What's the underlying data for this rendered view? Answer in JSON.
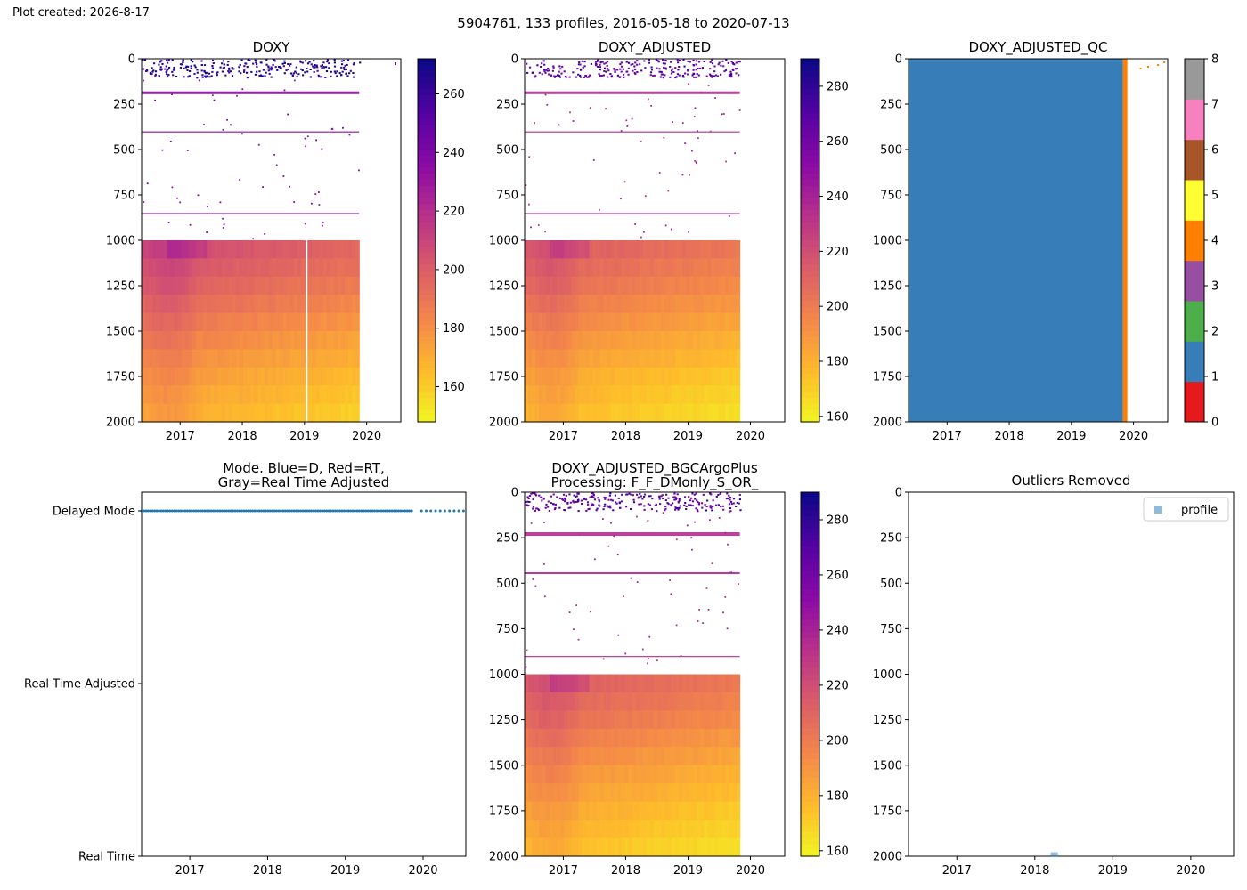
{
  "header": {
    "created": "Plot created: 2026-8-17",
    "suptitle": "5904761, 133 profiles, 2016-05-18 to 2020-07-13"
  },
  "colors": {
    "qc": [
      "#e41a1c",
      "#377eb8",
      "#4daf4a",
      "#984ea3",
      "#ff7f00",
      "#ffff33",
      "#a65628",
      "#f781bf",
      "#999999"
    ],
    "mode_delayed": "#1f77b4",
    "outlier_marker": "#1f77b4"
  },
  "chart_data": [
    {
      "id": "doxy",
      "type": "heatmap",
      "title": "DOXY",
      "ylim": [
        2000,
        0
      ],
      "xlim": [
        2016.38,
        2020.55
      ],
      "xticks": [
        2017,
        2018,
        2019,
        2020
      ],
      "yticks": [
        0,
        250,
        500,
        750,
        1000,
        1250,
        1500,
        1750,
        2000
      ],
      "colormap": "plasma_r",
      "clim": [
        148,
        272
      ],
      "cbar_ticks": [
        160,
        180,
        200,
        220,
        240,
        260
      ],
      "data_extent_x": [
        2016.38,
        2019.88
      ],
      "profiles": [
        {
          "depth": 0,
          "value": 250
        },
        {
          "depth": 200,
          "value": 238
        },
        {
          "depth": 400,
          "value": 240
        },
        {
          "depth": 650,
          "value": 232
        },
        {
          "depth": 850,
          "value": 235
        },
        {
          "depth": 1000,
          "value": 208
        },
        {
          "depth": 1250,
          "value": 196
        },
        {
          "depth": 1500,
          "value": 182
        },
        {
          "depth": 1750,
          "value": 172
        },
        {
          "depth": 2000,
          "value": 165
        }
      ]
    },
    {
      "id": "doxy_adjusted",
      "type": "heatmap",
      "title": "DOXY_ADJUSTED",
      "ylim": [
        2000,
        0
      ],
      "xlim": [
        2016.38,
        2020.55
      ],
      "xticks": [
        2017,
        2018,
        2019,
        2020
      ],
      "yticks": [
        0,
        250,
        500,
        750,
        1000,
        1250,
        1500,
        1750,
        2000
      ],
      "colormap": "plasma_r",
      "clim": [
        158,
        290
      ],
      "cbar_ticks": [
        160,
        180,
        200,
        220,
        240,
        260,
        280
      ],
      "data_extent_x": [
        2016.38,
        2019.83
      ]
    },
    {
      "id": "doxy_adjusted_qc",
      "type": "heatmap",
      "title": "DOXY_ADJUSTED_QC",
      "ylim": [
        2000,
        0
      ],
      "xlim": [
        2016.38,
        2020.55
      ],
      "xticks": [
        2017,
        2018,
        2019,
        2020
      ],
      "yticks": [
        0,
        250,
        500,
        750,
        1000,
        1250,
        1500,
        1750,
        2000
      ],
      "cbar_ticks": [
        0,
        1,
        2,
        3,
        4,
        5,
        6,
        7,
        8
      ],
      "blocks": [
        {
          "x0": 2016.38,
          "x1": 2019.83,
          "qc": 1
        },
        {
          "x0": 2019.83,
          "x1": 2019.9,
          "qc": 4
        }
      ]
    },
    {
      "id": "mode",
      "type": "scatter",
      "title": "Mode. Blue=D, Red=RT,",
      "title2": "Gray=Real Time Adjusted",
      "xlim": [
        2016.38,
        2020.55
      ],
      "xticks": [
        2017,
        2018,
        2019,
        2020
      ],
      "yticks": [
        "Delayed Mode",
        "Real Time Adjusted",
        "Real Time"
      ],
      "delayed_ranges": [
        [
          2016.38,
          2019.88
        ],
        [
          2019.98,
          2020.53
        ]
      ]
    },
    {
      "id": "doxy_bgc",
      "type": "heatmap",
      "title": "DOXY_ADJUSTED_BGCArgoPlus",
      "title2": "Processing: F_F_DMonly_S_OR_",
      "ylim": [
        2000,
        0
      ],
      "xlim": [
        2016.38,
        2020.55
      ],
      "xticks": [
        2017,
        2018,
        2019,
        2020
      ],
      "yticks": [
        0,
        250,
        500,
        750,
        1000,
        1250,
        1500,
        1750,
        2000
      ],
      "colormap": "plasma_r",
      "clim": [
        158,
        290
      ],
      "cbar_ticks": [
        160,
        180,
        200,
        220,
        240,
        260,
        280
      ],
      "data_extent_x": [
        2016.38,
        2019.83
      ]
    },
    {
      "id": "outliers",
      "type": "scatter",
      "title": "Outliers Removed",
      "ylim": [
        2000,
        0
      ],
      "xlim": [
        2016.38,
        2020.55
      ],
      "xticks": [
        2017,
        2018,
        2019,
        2020
      ],
      "yticks": [
        0,
        250,
        500,
        750,
        1000,
        1250,
        1500,
        1750,
        2000
      ],
      "legend": [
        "profile"
      ],
      "legend_position": "top-right",
      "points": [
        {
          "x": 2018.25,
          "y": 1998
        }
      ]
    }
  ]
}
